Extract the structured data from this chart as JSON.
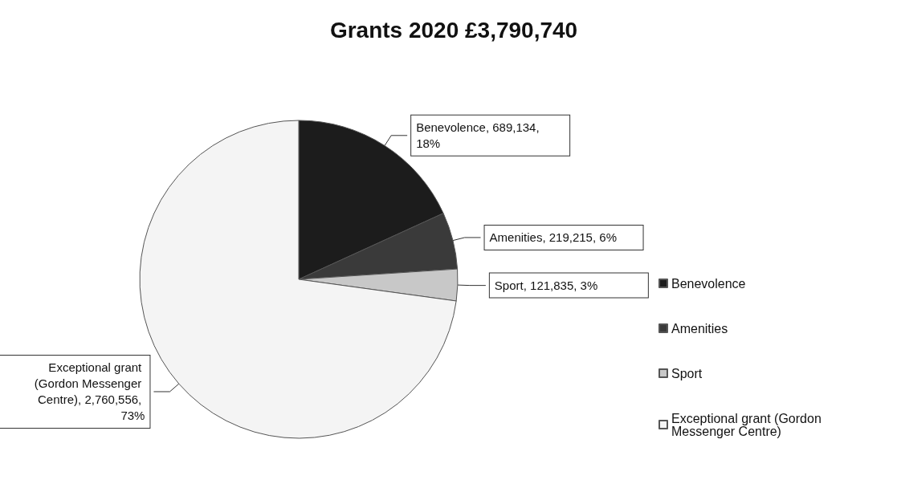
{
  "chart_data": {
    "type": "pie",
    "title": "Grants 2020 £3,790,740",
    "categories": [
      "Benevolence",
      "Amenities",
      "Sport",
      "Exceptional grant (Gordon Messenger Centre)"
    ],
    "values": [
      689134,
      219215,
      121835,
      2760556
    ],
    "colors": [
      "#1c1c1c",
      "#3a3a3a",
      "#c8c8c8",
      "#f4f4f4"
    ],
    "value_labels": [
      "Benevolence, 689,134, 18%",
      "Amenities, 219,215, 6%",
      "Sport, 121,835, 3%",
      "Exceptional grant (Gordon Messenger Centre), 2,760,556, 73%"
    ],
    "legend": "right"
  }
}
